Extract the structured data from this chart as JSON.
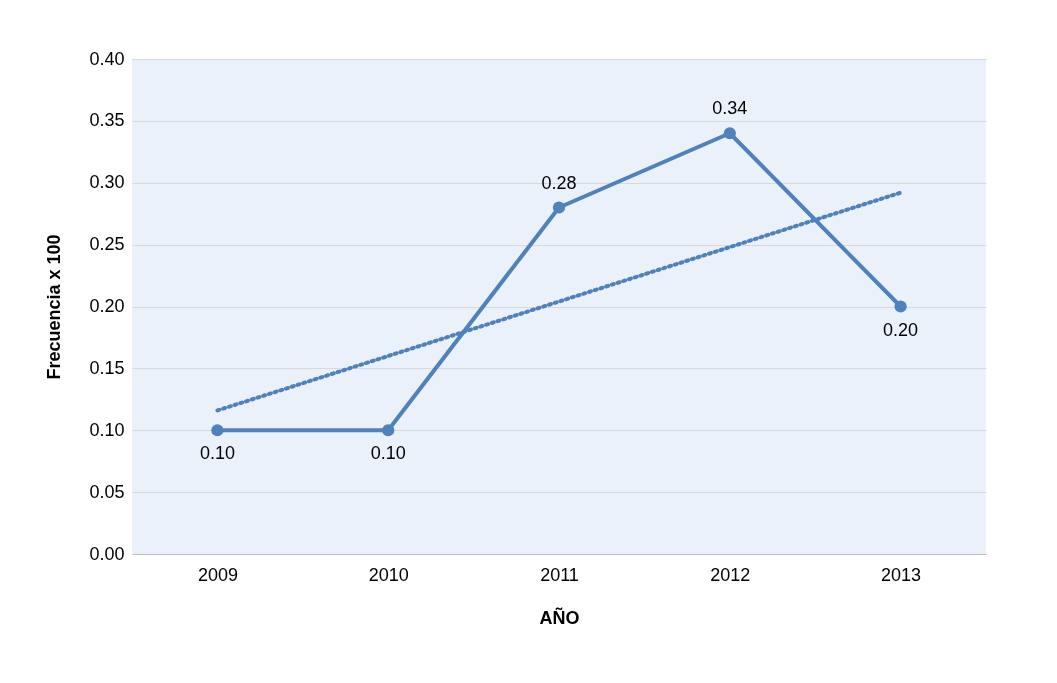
{
  "chart_data": {
    "type": "line",
    "xlabel": "AÑO",
    "ylabel": "Frecuencia x 100",
    "categories": [
      "2009",
      "2010",
      "2011",
      "2012",
      "2013"
    ],
    "series": [
      {
        "color": "#4f81bd",
        "values": [
          0.1,
          0.1,
          0.28,
          0.34,
          0.2
        ],
        "marker": "circle",
        "line_style": "solid",
        "value_labels": [
          "0.10",
          "0.10",
          "0.28",
          "0.34",
          "0.20"
        ]
      },
      {
        "type": "line",
        "color": "#4f81bd",
        "values": [
          0.116,
          null,
          null,
          null,
          0.292
        ],
        "marker": "none",
        "line_style": "dotted"
      }
    ],
    "ylim": [
      0,
      0.4
    ],
    "yticks": [
      {
        "value": 0,
        "label": "0.00"
      },
      {
        "value": 0.05,
        "label": "0.05"
      },
      {
        "value": 0.1,
        "label": "0.10"
      },
      {
        "value": 0.15,
        "label": "0.15"
      },
      {
        "value": 0.2,
        "label": "0.20"
      },
      {
        "value": 0.25,
        "label": "0.25"
      },
      {
        "value": 0.3,
        "label": "0.30"
      },
      {
        "value": 0.35,
        "label": "0.35"
      },
      {
        "value": 0.4,
        "label": "0.40"
      }
    ],
    "grid": "y"
  }
}
